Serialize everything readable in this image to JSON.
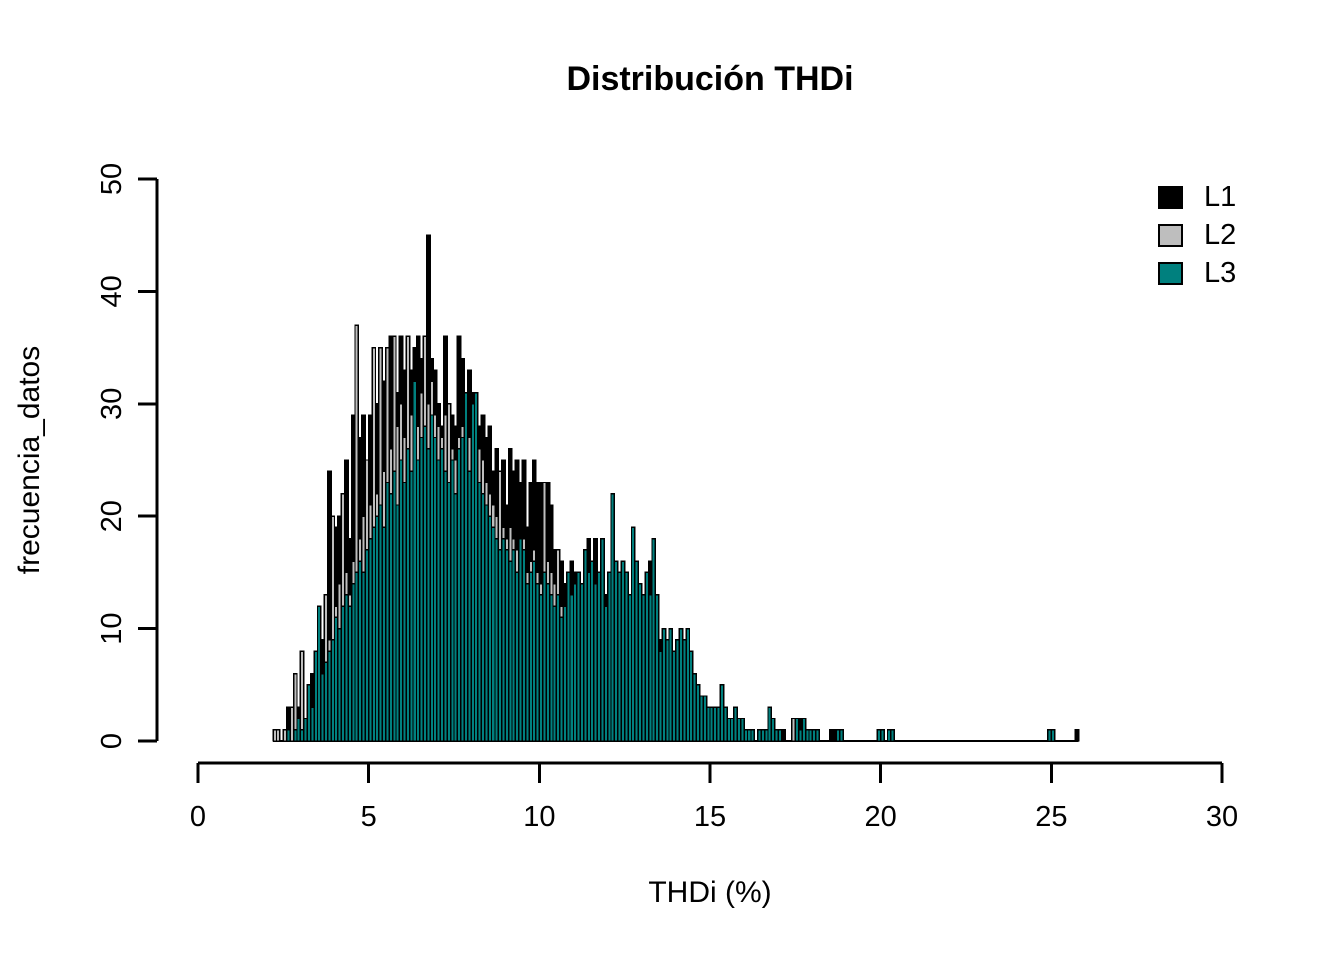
{
  "chart_data": {
    "type": "bar",
    "subtype": "overlaid-histogram",
    "title": "Distribución THDi",
    "xlabel": "THDi (%)",
    "ylabel": "frecuencia_datos",
    "xlim": [
      0,
      30
    ],
    "ylim": [
      0,
      50
    ],
    "x_ticks": [
      0,
      5,
      10,
      15,
      20,
      25,
      30
    ],
    "y_ticks": [
      0,
      10,
      20,
      30,
      40,
      50
    ],
    "grid": false,
    "legend_position": "topright",
    "bin_start": 2.2,
    "bin_width": 0.1,
    "bar_border_color": "#000000",
    "series": [
      {
        "name": "L1",
        "color": "#000000",
        "counts": [
          0,
          0,
          0,
          0,
          3,
          1,
          2,
          3,
          2,
          2,
          3,
          6,
          5,
          8,
          9,
          10,
          24,
          13,
          19,
          20,
          16,
          25,
          18,
          29,
          21,
          27,
          29,
          22,
          29,
          24,
          30,
          26,
          32,
          28,
          36,
          27,
          31,
          36,
          33,
          30,
          33,
          35,
          36,
          34,
          30,
          45,
          34,
          33,
          30,
          28,
          36,
          27,
          29,
          28,
          36,
          34,
          31,
          33,
          31,
          28,
          28,
          29,
          27,
          28,
          24,
          26,
          23,
          25,
          21,
          26,
          24,
          25,
          23,
          25,
          19,
          23,
          25,
          23,
          23,
          21,
          23,
          21,
          17,
          15,
          16,
          14,
          13,
          16,
          15,
          13,
          12,
          14,
          18,
          13,
          18,
          12,
          11,
          13,
          12,
          14,
          12,
          11,
          13,
          12,
          10,
          14,
          12,
          11,
          10,
          12,
          16,
          11,
          10,
          9,
          8,
          7,
          8,
          6,
          7,
          8,
          7,
          8,
          6,
          4,
          3,
          3,
          2,
          2,
          2,
          1,
          2,
          2,
          1,
          1,
          1,
          2,
          1,
          1,
          1,
          0,
          1,
          0,
          0,
          0,
          1,
          1,
          1,
          0,
          0,
          1,
          0,
          0,
          0,
          1,
          2,
          1,
          0,
          0,
          1,
          0,
          0,
          0,
          0,
          1,
          1,
          0,
          0,
          0,
          0,
          0,
          0,
          0,
          0,
          0,
          0,
          0,
          0,
          0,
          0,
          0,
          0,
          0,
          0,
          0,
          0,
          0,
          0,
          0,
          0,
          0,
          0,
          0,
          0,
          0,
          0,
          0,
          0,
          0,
          0,
          0,
          0,
          0,
          0,
          0,
          0,
          0,
          0,
          0,
          0,
          0,
          0,
          0,
          0,
          0,
          0,
          0,
          0,
          0,
          0,
          0,
          0,
          0,
          0,
          0,
          0,
          0,
          0,
          0,
          0,
          0,
          0,
          0,
          0,
          0,
          0,
          1
        ]
      },
      {
        "name": "L2",
        "color": "#BEBEBE",
        "counts": [
          1,
          1,
          0,
          1,
          1,
          3,
          6,
          2,
          8,
          1,
          2,
          3,
          4,
          5,
          4,
          13,
          9,
          20,
          12,
          14,
          22,
          15,
          13,
          16,
          37,
          18,
          20,
          25,
          21,
          35,
          22,
          35,
          24,
          35,
          26,
          36,
          28,
          30,
          27,
          36,
          29,
          30,
          28,
          31,
          36,
          30,
          32,
          29,
          28,
          27,
          29,
          30,
          26,
          25,
          27,
          28,
          26,
          27,
          25,
          24,
          26,
          25,
          23,
          22,
          21,
          20,
          24,
          19,
          18,
          19,
          18,
          17,
          16,
          18,
          15,
          16,
          17,
          15,
          14,
          23,
          16,
          15,
          14,
          17,
          12,
          11,
          12,
          11,
          10,
          11,
          10,
          11,
          12,
          11,
          12,
          10,
          9,
          10,
          9,
          10,
          9,
          8,
          9,
          8,
          7,
          9,
          8,
          7,
          8,
          7,
          8,
          7,
          5,
          5,
          6,
          5,
          4,
          5,
          4,
          4,
          3,
          4,
          3,
          3,
          2,
          2,
          2,
          1,
          1,
          1,
          1,
          1,
          1,
          1,
          1,
          1,
          1,
          0,
          0,
          0,
          0,
          0,
          1,
          0,
          0,
          0,
          0,
          1,
          1,
          0,
          0,
          0,
          2,
          0,
          0,
          0,
          0,
          0,
          0,
          0,
          0,
          0,
          0,
          0,
          0,
          0,
          0,
          0,
          0,
          0,
          0,
          0,
          0,
          0,
          0,
          0,
          0,
          0,
          0,
          0,
          0,
          0,
          0,
          0,
          0,
          0,
          0,
          0,
          0,
          0,
          0,
          0,
          0,
          0,
          0,
          0,
          0,
          0,
          0,
          0,
          0,
          0,
          0,
          0,
          0,
          0,
          0,
          0,
          0,
          0,
          0,
          0,
          0,
          0,
          0,
          0,
          0,
          0,
          0,
          0,
          0,
          0,
          0,
          0,
          0,
          0,
          0,
          0,
          0,
          0,
          0,
          0,
          0,
          0,
          0,
          0
        ]
      },
      {
        "name": "L3",
        "color": "#00807E",
        "counts": [
          0,
          0,
          0,
          0,
          1,
          0,
          1,
          2,
          1,
          2,
          5,
          3,
          8,
          12,
          6,
          7,
          8,
          9,
          11,
          10,
          12,
          13,
          12,
          14,
          15,
          16,
          15,
          17,
          18,
          19,
          20,
          21,
          19,
          23,
          22,
          24,
          21,
          25,
          23,
          26,
          24,
          32,
          25,
          27,
          28,
          26,
          29,
          27,
          25,
          26,
          24,
          23,
          25,
          22,
          26,
          27,
          31,
          24,
          30,
          31,
          23,
          22,
          21,
          20,
          19,
          18,
          17,
          18,
          17,
          16,
          17,
          15,
          18,
          17,
          14,
          15,
          16,
          14,
          13,
          15,
          14,
          13,
          12,
          13,
          11,
          12,
          15,
          13,
          14,
          15,
          14,
          17,
          15,
          16,
          14,
          15,
          18,
          12,
          15,
          22,
          16,
          15,
          16,
          15,
          13,
          19,
          16,
          14,
          13,
          15,
          13,
          18,
          13,
          8,
          10,
          9,
          10,
          8,
          9,
          10,
          9,
          10,
          8,
          6,
          5,
          4,
          4,
          3,
          3,
          3,
          3,
          5,
          3,
          2,
          2,
          3,
          2,
          2,
          1,
          1,
          1,
          0,
          1,
          1,
          1,
          3,
          2,
          1,
          1,
          0,
          0,
          0,
          0,
          2,
          1,
          2,
          1,
          1,
          1,
          1,
          0,
          0,
          0,
          0,
          0,
          1,
          1,
          0,
          0,
          0,
          0,
          0,
          0,
          0,
          0,
          0,
          0,
          1,
          1,
          0,
          1,
          1,
          0,
          0,
          0,
          0,
          0,
          0,
          0,
          0,
          0,
          0,
          0,
          0,
          0,
          0,
          0,
          0,
          0,
          0,
          0,
          0,
          0,
          0,
          0,
          0,
          0,
          0,
          0,
          0,
          0,
          0,
          0,
          0,
          0,
          0,
          0,
          0,
          0,
          0,
          0,
          0,
          0,
          0,
          0,
          0,
          0,
          1,
          1,
          0,
          0,
          0,
          0,
          0,
          0,
          0
        ]
      }
    ]
  }
}
